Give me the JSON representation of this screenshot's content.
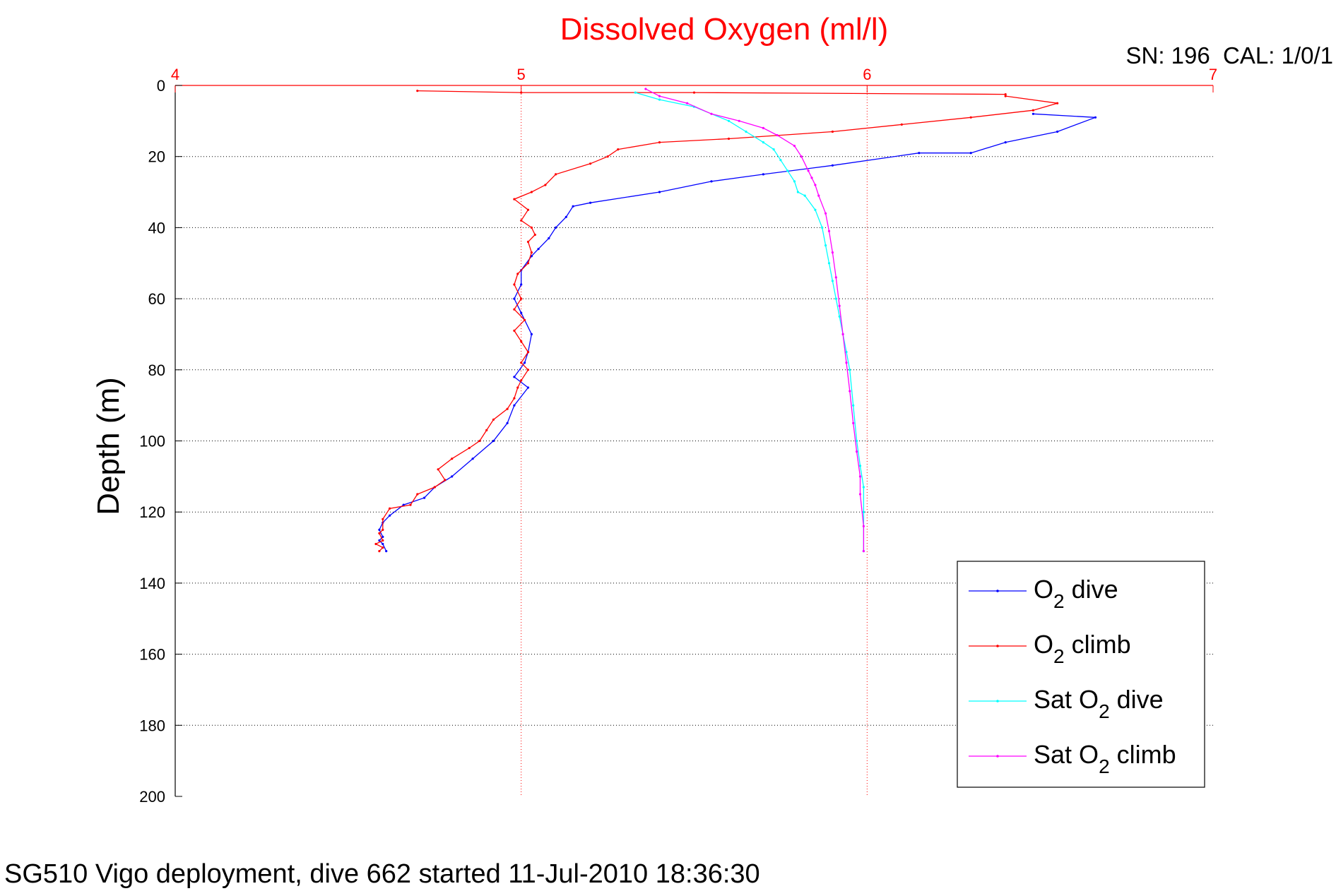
{
  "chart_data": {
    "type": "line",
    "title": "Dissolved Oxygen (ml/l)",
    "corner_label": "SN: 196  CAL: 1/0/1",
    "ylabel": "Depth (m)",
    "xlabel": "",
    "footer": "SG510 Vigo deployment, dive 662 started 11-Jul-2010 18:36:30",
    "xlim": [
      4,
      7
    ],
    "ylim": [
      0,
      200
    ],
    "y_reversed": true,
    "x_axis_position": "top",
    "x_axis_color": "#ff0000",
    "grid": true,
    "legend_position": "bottom-right",
    "xticks": [
      "4",
      "5",
      "6",
      "7"
    ],
    "yticks": [
      "0",
      "20",
      "40",
      "60",
      "80",
      "100",
      "120",
      "140",
      "160",
      "180",
      "200"
    ],
    "legend": [
      {
        "main": "O",
        "sub": "2",
        "rest": " dive",
        "prefix": ""
      },
      {
        "main": "O",
        "sub": "2",
        "rest": " climb",
        "prefix": ""
      },
      {
        "main": "O",
        "sub": "2",
        "rest": " dive",
        "prefix": "Sat "
      },
      {
        "main": "O",
        "sub": "2",
        "rest": " climb",
        "prefix": "Sat "
      }
    ],
    "series": [
      {
        "name": "O2 dive",
        "color": "#0000ff",
        "points": [
          [
            6.48,
            8
          ],
          [
            6.66,
            9
          ],
          [
            6.55,
            13
          ],
          [
            6.4,
            16
          ],
          [
            6.3,
            19
          ],
          [
            6.15,
            19
          ],
          [
            5.9,
            22.5
          ],
          [
            5.7,
            25
          ],
          [
            5.55,
            27
          ],
          [
            5.4,
            30
          ],
          [
            5.2,
            33
          ],
          [
            5.15,
            34
          ],
          [
            5.13,
            37
          ],
          [
            5.1,
            40
          ],
          [
            5.08,
            43
          ],
          [
            5.05,
            46
          ],
          [
            5.03,
            48
          ],
          [
            5.0,
            52
          ],
          [
            5.0,
            56
          ],
          [
            4.98,
            60
          ],
          [
            5.0,
            64
          ],
          [
            5.03,
            70
          ],
          [
            5.02,
            75
          ],
          [
            5.01,
            78
          ],
          [
            4.98,
            82
          ],
          [
            5.02,
            85
          ],
          [
            4.98,
            90
          ],
          [
            4.96,
            95
          ],
          [
            4.92,
            100
          ],
          [
            4.86,
            105
          ],
          [
            4.8,
            110
          ],
          [
            4.75,
            113
          ],
          [
            4.72,
            116
          ],
          [
            4.66,
            118
          ],
          [
            4.62,
            121
          ],
          [
            4.6,
            123
          ],
          [
            4.59,
            125
          ],
          [
            4.6,
            127
          ],
          [
            4.59,
            128
          ],
          [
            4.6,
            129
          ],
          [
            4.61,
            131
          ]
        ]
      },
      {
        "name": "O2 climb",
        "color": "#ff0000",
        "points": [
          [
            4.59,
            131
          ],
          [
            4.6,
            130
          ],
          [
            4.58,
            129
          ],
          [
            4.6,
            128
          ],
          [
            4.59,
            126
          ],
          [
            4.6,
            125
          ],
          [
            4.6,
            122
          ],
          [
            4.62,
            119
          ],
          [
            4.68,
            118
          ],
          [
            4.7,
            115
          ],
          [
            4.75,
            113
          ],
          [
            4.78,
            111
          ],
          [
            4.76,
            108
          ],
          [
            4.8,
            105
          ],
          [
            4.85,
            102
          ],
          [
            4.88,
            100
          ],
          [
            4.9,
            97
          ],
          [
            4.92,
            94
          ],
          [
            4.96,
            91
          ],
          [
            4.98,
            88
          ],
          [
            4.99,
            85
          ],
          [
            5.0,
            83
          ],
          [
            5.02,
            80
          ],
          [
            5.0,
            78
          ],
          [
            5.02,
            75
          ],
          [
            5.0,
            72
          ],
          [
            4.98,
            69
          ],
          [
            5.01,
            66
          ],
          [
            4.98,
            63
          ],
          [
            5.0,
            60
          ],
          [
            4.98,
            56
          ],
          [
            4.99,
            53
          ],
          [
            5.02,
            50
          ],
          [
            5.03,
            47
          ],
          [
            5.02,
            44
          ],
          [
            5.04,
            42
          ],
          [
            5.03,
            40
          ],
          [
            5.0,
            38
          ],
          [
            5.02,
            35
          ],
          [
            4.98,
            32
          ],
          [
            5.03,
            30
          ],
          [
            5.07,
            28
          ],
          [
            5.1,
            25
          ],
          [
            5.2,
            22
          ],
          [
            5.25,
            20
          ],
          [
            5.28,
            18
          ],
          [
            5.4,
            16
          ],
          [
            5.6,
            15
          ],
          [
            5.9,
            13
          ],
          [
            6.1,
            11
          ],
          [
            6.3,
            9
          ],
          [
            6.48,
            7
          ],
          [
            6.55,
            5
          ],
          [
            6.4,
            3
          ],
          [
            6.4,
            2.5
          ],
          [
            5.5,
            2
          ],
          [
            5.0,
            2
          ],
          [
            4.7,
            1.5
          ]
        ]
      },
      {
        "name": "Sat O2 dive",
        "color": "#00ffff",
        "points": [
          [
            5.33,
            2
          ],
          [
            5.4,
            4
          ],
          [
            5.5,
            6
          ],
          [
            5.55,
            8
          ],
          [
            5.6,
            10
          ],
          [
            5.65,
            13
          ],
          [
            5.7,
            16
          ],
          [
            5.73,
            18
          ],
          [
            5.75,
            21
          ],
          [
            5.77,
            24
          ],
          [
            5.79,
            27
          ],
          [
            5.8,
            30
          ],
          [
            5.82,
            31
          ],
          [
            5.85,
            35
          ],
          [
            5.87,
            40
          ],
          [
            5.88,
            45
          ],
          [
            5.89,
            50
          ],
          [
            5.9,
            55
          ],
          [
            5.91,
            60
          ],
          [
            5.92,
            65
          ],
          [
            5.93,
            70
          ],
          [
            5.94,
            75
          ],
          [
            5.95,
            80
          ],
          [
            5.96,
            90
          ],
          [
            5.97,
            100
          ],
          [
            5.98,
            107
          ],
          [
            5.99,
            113
          ],
          [
            5.99,
            120
          ],
          [
            5.99,
            131
          ]
        ]
      },
      {
        "name": "Sat O2 climb",
        "color": "#ff00ff",
        "points": [
          [
            5.99,
            131
          ],
          [
            5.99,
            124
          ],
          [
            5.98,
            115
          ],
          [
            5.98,
            110
          ],
          [
            5.97,
            103
          ],
          [
            5.96,
            95
          ],
          [
            5.95,
            86
          ],
          [
            5.94,
            78
          ],
          [
            5.93,
            70
          ],
          [
            5.92,
            62
          ],
          [
            5.91,
            54
          ],
          [
            5.9,
            47
          ],
          [
            5.89,
            41
          ],
          [
            5.88,
            36
          ],
          [
            5.86,
            31
          ],
          [
            5.85,
            28
          ],
          [
            5.84,
            26
          ],
          [
            5.83,
            24
          ],
          [
            5.81,
            20
          ],
          [
            5.79,
            17
          ],
          [
            5.74,
            14
          ],
          [
            5.7,
            12
          ],
          [
            5.63,
            10
          ],
          [
            5.55,
            8
          ],
          [
            5.48,
            5
          ],
          [
            5.4,
            3
          ],
          [
            5.36,
            1
          ]
        ]
      }
    ]
  }
}
